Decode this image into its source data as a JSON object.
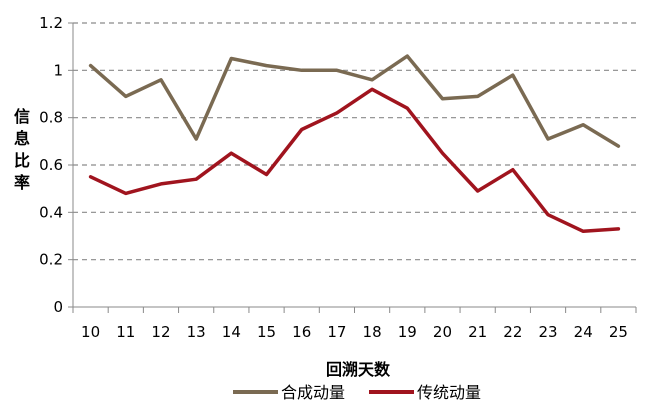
{
  "chart_data": {
    "type": "line",
    "title": "",
    "xlabel": "回溯天数",
    "ylabel": "信息比率",
    "x": [
      "10",
      "11",
      "12",
      "13",
      "14",
      "15",
      "16",
      "17",
      "18",
      "19",
      "20",
      "21",
      "22",
      "23",
      "24",
      "25"
    ],
    "ylim": [
      0,
      1.2
    ],
    "yticks": [
      "0",
      "0.2",
      "0.4",
      "0.6",
      "0.8",
      "1",
      "1.2"
    ],
    "grid": true,
    "legend": "bottom",
    "series": [
      {
        "name": "合成动量",
        "color": "#7a6a52",
        "values": [
          1.02,
          0.89,
          0.96,
          0.71,
          1.05,
          1.02,
          1.0,
          1.0,
          0.96,
          1.06,
          0.88,
          0.89,
          0.98,
          0.71,
          0.77,
          0.68
        ]
      },
      {
        "name": "传统动量",
        "color": "#a0141e",
        "values": [
          0.55,
          0.48,
          0.52,
          0.54,
          0.65,
          0.56,
          0.75,
          0.82,
          0.92,
          0.84,
          0.65,
          0.49,
          0.58,
          0.39,
          0.32,
          0.33
        ]
      }
    ]
  }
}
